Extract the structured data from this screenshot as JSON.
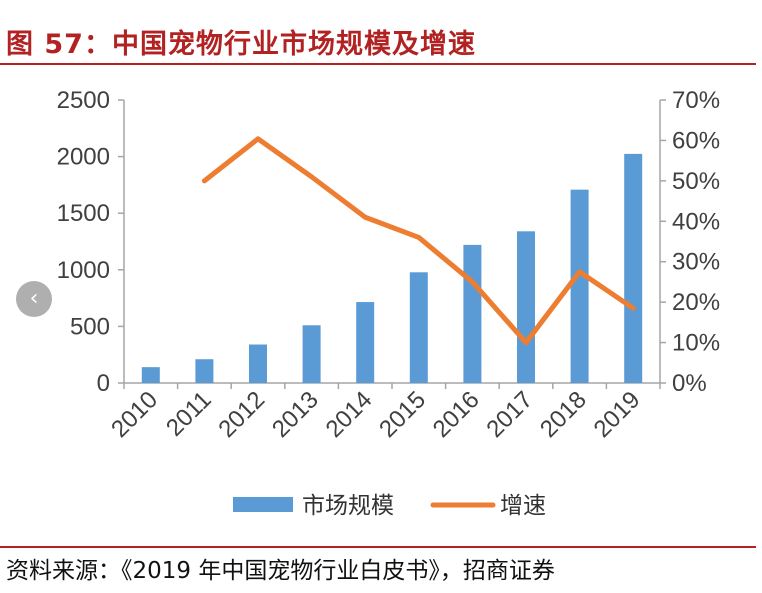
{
  "header": {
    "title": "图 57：中国宠物行业市场规模及增速"
  },
  "footer": {
    "source": "资料来源：《2019 年中国宠物行业白皮书》，招商证券"
  },
  "nav": {
    "prev_icon": "chevron-left-icon",
    "prev_glyph": "‹"
  },
  "colors": {
    "bar": "#5b9bd5",
    "line": "#ed7d31",
    "accent": "#b22222",
    "axis": "#a6a6a6"
  },
  "chart_data": {
    "type": "bar+line",
    "categories": [
      "2010",
      "2011",
      "2012",
      "2013",
      "2014",
      "2015",
      "2016",
      "2017",
      "2018",
      "2019"
    ],
    "series": [
      {
        "name": "市场规模",
        "type": "bar",
        "axis": "left",
        "values": [
          140,
          210,
          340,
          510,
          715,
          978,
          1220,
          1340,
          1708,
          2024
        ]
      },
      {
        "name": "增速",
        "type": "line",
        "axis": "right",
        "values": [
          null,
          0.5,
          0.604,
          0.51,
          0.41,
          0.36,
          0.25,
          0.1,
          0.275,
          0.185
        ]
      }
    ],
    "y_left": {
      "min": 0,
      "max": 2500,
      "ticks": [
        0,
        500,
        1000,
        1500,
        2000,
        2500
      ]
    },
    "y_right": {
      "min": 0,
      "max": 0.7,
      "ticks": [
        "0%",
        "10%",
        "20%",
        "30%",
        "40%",
        "50%",
        "60%",
        "70%"
      ]
    },
    "legend": {
      "placement": "bottom"
    }
  }
}
